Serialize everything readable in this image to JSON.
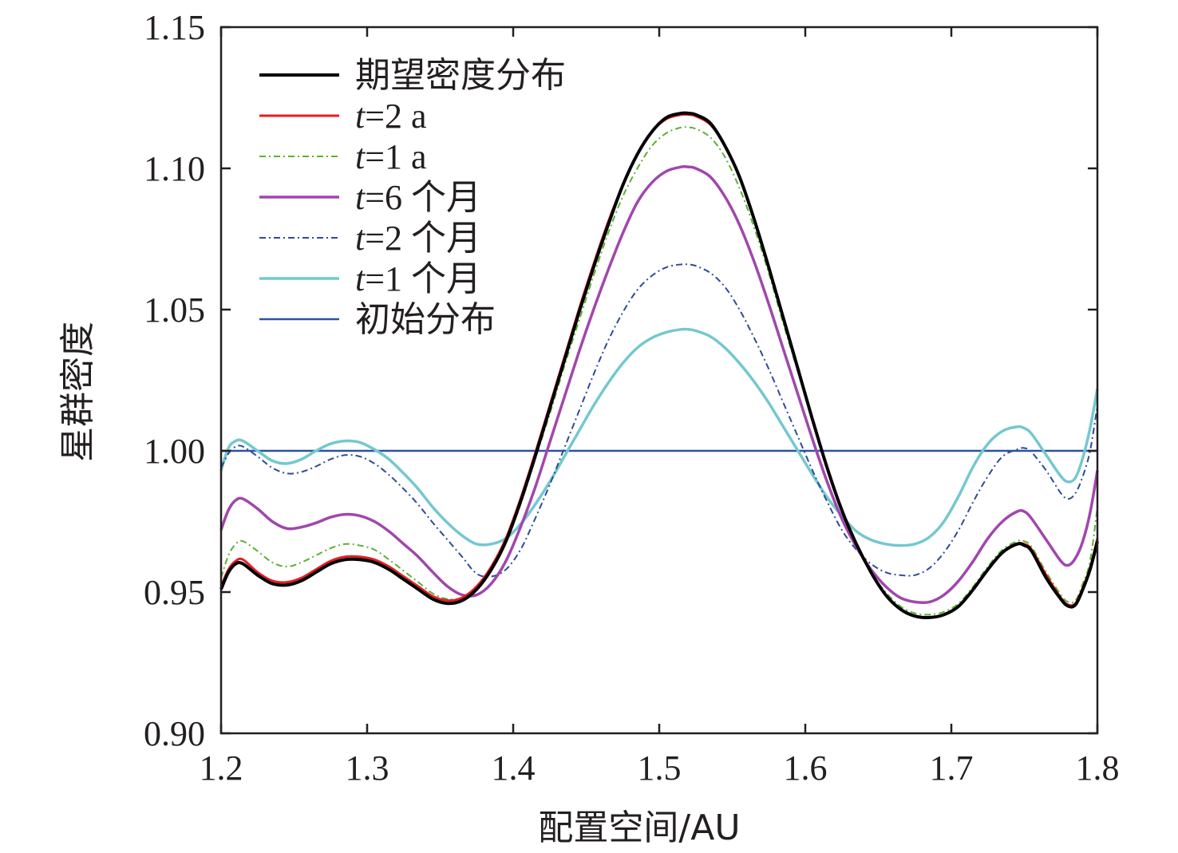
{
  "chart_data": {
    "type": "line",
    "xlabel": "配置空间/AU",
    "ylabel": "星群密度",
    "xlim": [
      1.2,
      1.8
    ],
    "ylim": [
      0.9,
      1.15
    ],
    "xticks": [
      "1.2",
      "1.3",
      "1.4",
      "1.5",
      "1.6",
      "1.7",
      "1.8"
    ],
    "yticks": [
      "0.90",
      "0.95",
      "1.00",
      "1.05",
      "1.10",
      "1.15"
    ],
    "legend_position": "top-left",
    "grid": false,
    "series": [
      {
        "name": "期望密度分布",
        "italic_prefix": "",
        "suffix": "期望密度分布",
        "color": "#000000",
        "dash": "",
        "width": 4,
        "x": [
          1.2,
          1.205,
          1.21,
          1.215,
          1.225,
          1.235,
          1.245,
          1.255,
          1.265,
          1.275,
          1.285,
          1.295,
          1.305,
          1.315,
          1.325,
          1.335,
          1.345,
          1.355,
          1.365,
          1.375,
          1.385,
          1.395,
          1.405,
          1.415,
          1.425,
          1.435,
          1.445,
          1.455,
          1.465,
          1.475,
          1.485,
          1.495,
          1.505,
          1.515,
          1.52,
          1.525,
          1.535,
          1.545,
          1.555,
          1.565,
          1.575,
          1.585,
          1.595,
          1.605,
          1.615,
          1.625,
          1.635,
          1.645,
          1.655,
          1.665,
          1.675,
          1.685,
          1.695,
          1.705,
          1.715,
          1.725,
          1.735,
          1.745,
          1.75,
          1.755,
          1.765,
          1.775,
          1.78,
          1.785,
          1.79,
          1.795,
          1.8
        ],
        "y": [
          0.951,
          0.957,
          0.96,
          0.96,
          0.956,
          0.953,
          0.9525,
          0.954,
          0.957,
          0.96,
          0.9615,
          0.9615,
          0.9605,
          0.958,
          0.9545,
          0.951,
          0.9475,
          0.946,
          0.947,
          0.951,
          0.958,
          0.968,
          0.982,
          0.998,
          1.015,
          1.032,
          1.049,
          1.065,
          1.08,
          1.094,
          1.105,
          1.113,
          1.118,
          1.1195,
          1.1195,
          1.119,
          1.116,
          1.108,
          1.097,
          1.082,
          1.065,
          1.047,
          1.029,
          1.011,
          0.994,
          0.979,
          0.967,
          0.957,
          0.949,
          0.944,
          0.9415,
          0.941,
          0.942,
          0.945,
          0.951,
          0.958,
          0.964,
          0.967,
          0.9665,
          0.9645,
          0.955,
          0.9475,
          0.945,
          0.9455,
          0.951,
          0.958,
          0.968
        ]
      },
      {
        "name": "t=2 a",
        "italic_prefix": "t",
        "suffix": "=2 a",
        "color": "#e31e24",
        "dash": "",
        "width": 3,
        "x": [
          1.2,
          1.205,
          1.21,
          1.215,
          1.225,
          1.235,
          1.245,
          1.255,
          1.265,
          1.275,
          1.285,
          1.295,
          1.305,
          1.315,
          1.325,
          1.335,
          1.345,
          1.355,
          1.365,
          1.375,
          1.385,
          1.395,
          1.405,
          1.415,
          1.425,
          1.435,
          1.445,
          1.455,
          1.465,
          1.475,
          1.485,
          1.495,
          1.505,
          1.515,
          1.52,
          1.525,
          1.535,
          1.545,
          1.555,
          1.565,
          1.575,
          1.585,
          1.595,
          1.605,
          1.615,
          1.625,
          1.635,
          1.645,
          1.655,
          1.665,
          1.675,
          1.685,
          1.695,
          1.705,
          1.715,
          1.725,
          1.735,
          1.745,
          1.75,
          1.755,
          1.765,
          1.775,
          1.78,
          1.785,
          1.79,
          1.795,
          1.8
        ],
        "y": [
          0.952,
          0.958,
          0.961,
          0.9615,
          0.957,
          0.954,
          0.9535,
          0.955,
          0.958,
          0.961,
          0.9625,
          0.9625,
          0.9615,
          0.959,
          0.9555,
          0.952,
          0.9485,
          0.947,
          0.948,
          0.952,
          0.959,
          0.969,
          0.983,
          0.999,
          1.016,
          1.033,
          1.05,
          1.066,
          1.081,
          1.094,
          1.105,
          1.113,
          1.1175,
          1.119,
          1.119,
          1.1185,
          1.1155,
          1.108,
          1.097,
          1.082,
          1.065,
          1.047,
          1.029,
          1.011,
          0.994,
          0.979,
          0.967,
          0.957,
          0.949,
          0.944,
          0.9415,
          0.941,
          0.942,
          0.945,
          0.951,
          0.958,
          0.964,
          0.967,
          0.967,
          0.965,
          0.956,
          0.948,
          0.9455,
          0.946,
          0.9515,
          0.9585,
          0.969
        ]
      },
      {
        "name": "t=1 a",
        "italic_prefix": "t",
        "suffix": "=1 a",
        "color": "#5cb031",
        "dash": "8,4,2,4",
        "width": 2,
        "x": [
          1.2,
          1.205,
          1.21,
          1.215,
          1.225,
          1.235,
          1.245,
          1.255,
          1.265,
          1.275,
          1.285,
          1.295,
          1.305,
          1.315,
          1.325,
          1.335,
          1.345,
          1.355,
          1.365,
          1.375,
          1.385,
          1.395,
          1.405,
          1.415,
          1.425,
          1.435,
          1.445,
          1.455,
          1.465,
          1.475,
          1.485,
          1.495,
          1.505,
          1.515,
          1.52,
          1.525,
          1.535,
          1.545,
          1.555,
          1.565,
          1.575,
          1.585,
          1.595,
          1.605,
          1.615,
          1.625,
          1.635,
          1.645,
          1.655,
          1.665,
          1.675,
          1.685,
          1.695,
          1.705,
          1.715,
          1.725,
          1.735,
          1.745,
          1.75,
          1.755,
          1.765,
          1.775,
          1.78,
          1.785,
          1.79,
          1.795,
          1.8
        ],
        "y": [
          0.955,
          0.963,
          0.967,
          0.968,
          0.9645,
          0.9605,
          0.959,
          0.9605,
          0.963,
          0.9655,
          0.967,
          0.9665,
          0.965,
          0.9615,
          0.9575,
          0.9535,
          0.9495,
          0.9475,
          0.948,
          0.9515,
          0.958,
          0.968,
          0.981,
          0.997,
          1.013,
          1.03,
          1.046,
          1.062,
          1.077,
          1.09,
          1.1,
          1.108,
          1.1125,
          1.1145,
          1.1145,
          1.114,
          1.111,
          1.104,
          1.093,
          1.079,
          1.063,
          1.045,
          1.028,
          1.011,
          0.994,
          0.979,
          0.967,
          0.957,
          0.95,
          0.945,
          0.9425,
          0.942,
          0.943,
          0.946,
          0.952,
          0.959,
          0.965,
          0.968,
          0.968,
          0.966,
          0.957,
          0.949,
          0.9465,
          0.947,
          0.953,
          0.961,
          0.98
        ]
      },
      {
        "name": "t=6 个月",
        "italic_prefix": "t",
        "suffix": "=6 个月",
        "color": "#a146ad",
        "dash": "",
        "width": 3.5,
        "x": [
          1.2,
          1.205,
          1.21,
          1.215,
          1.225,
          1.235,
          1.245,
          1.255,
          1.265,
          1.275,
          1.285,
          1.295,
          1.305,
          1.315,
          1.325,
          1.335,
          1.345,
          1.355,
          1.365,
          1.375,
          1.385,
          1.395,
          1.405,
          1.415,
          1.425,
          1.435,
          1.445,
          1.455,
          1.465,
          1.475,
          1.485,
          1.495,
          1.505,
          1.515,
          1.52,
          1.525,
          1.535,
          1.545,
          1.555,
          1.565,
          1.575,
          1.585,
          1.595,
          1.605,
          1.615,
          1.625,
          1.635,
          1.645,
          1.655,
          1.665,
          1.675,
          1.685,
          1.695,
          1.705,
          1.715,
          1.725,
          1.735,
          1.745,
          1.75,
          1.755,
          1.765,
          1.775,
          1.78,
          1.785,
          1.79,
          1.795,
          1.8
        ],
        "y": [
          0.972,
          0.979,
          0.9825,
          0.983,
          0.9795,
          0.975,
          0.9725,
          0.973,
          0.9745,
          0.9765,
          0.9775,
          0.977,
          0.975,
          0.9715,
          0.967,
          0.9625,
          0.957,
          0.952,
          0.949,
          0.949,
          0.953,
          0.961,
          0.973,
          0.987,
          1.003,
          1.019,
          1.035,
          1.05,
          1.064,
          1.077,
          1.088,
          1.095,
          1.099,
          1.1005,
          1.1005,
          1.1,
          1.097,
          1.09,
          1.08,
          1.067,
          1.052,
          1.036,
          1.02,
          1.004,
          0.989,
          0.976,
          0.966,
          0.958,
          0.952,
          0.948,
          0.9465,
          0.9465,
          0.949,
          0.954,
          0.961,
          0.969,
          0.975,
          0.9785,
          0.9785,
          0.976,
          0.9685,
          0.961,
          0.9595,
          0.962,
          0.968,
          0.978,
          0.993
        ]
      },
      {
        "name": "t=2 个月",
        "italic_prefix": "t",
        "suffix": "=2 个月",
        "color": "#2e4a9c",
        "dash": "8,4,2,4",
        "width": 2,
        "x": [
          1.2,
          1.205,
          1.21,
          1.215,
          1.225,
          1.235,
          1.245,
          1.255,
          1.265,
          1.275,
          1.285,
          1.295,
          1.305,
          1.315,
          1.325,
          1.335,
          1.345,
          1.355,
          1.365,
          1.375,
          1.385,
          1.395,
          1.405,
          1.415,
          1.425,
          1.435,
          1.445,
          1.455,
          1.465,
          1.475,
          1.485,
          1.495,
          1.505,
          1.515,
          1.52,
          1.525,
          1.535,
          1.545,
          1.555,
          1.565,
          1.575,
          1.585,
          1.595,
          1.605,
          1.615,
          1.625,
          1.635,
          1.645,
          1.655,
          1.665,
          1.675,
          1.685,
          1.695,
          1.705,
          1.715,
          1.725,
          1.735,
          1.745,
          1.75,
          1.755,
          1.765,
          1.775,
          1.78,
          1.785,
          1.79,
          1.795,
          1.8
        ],
        "y": [
          0.994,
          0.999,
          1.0015,
          1.0015,
          0.998,
          0.994,
          0.992,
          0.9925,
          0.9945,
          0.997,
          0.9985,
          0.998,
          0.9955,
          0.9915,
          0.9865,
          0.981,
          0.9745,
          0.9685,
          0.9625,
          0.9565,
          0.9555,
          0.958,
          0.965,
          0.976,
          0.988,
          1.001,
          1.014,
          1.027,
          1.039,
          1.049,
          1.057,
          1.062,
          1.065,
          1.066,
          1.066,
          1.0655,
          1.063,
          1.058,
          1.05,
          1.04,
          1.029,
          1.017,
          1.005,
          0.993,
          0.982,
          0.972,
          0.965,
          0.96,
          0.957,
          0.956,
          0.956,
          0.9585,
          0.964,
          0.972,
          0.982,
          0.991,
          0.998,
          1.0005,
          1.001,
          0.9995,
          0.993,
          0.985,
          0.983,
          0.985,
          0.991,
          1.0,
          1.016
        ]
      },
      {
        "name": "t=1 个月",
        "italic_prefix": "t",
        "suffix": "=1 个月",
        "color": "#74c8cf",
        "dash": "",
        "width": 3.5,
        "x": [
          1.2,
          1.205,
          1.21,
          1.215,
          1.225,
          1.235,
          1.245,
          1.255,
          1.265,
          1.275,
          1.285,
          1.295,
          1.305,
          1.315,
          1.325,
          1.335,
          1.345,
          1.355,
          1.365,
          1.375,
          1.385,
          1.395,
          1.405,
          1.415,
          1.425,
          1.435,
          1.445,
          1.455,
          1.465,
          1.475,
          1.485,
          1.495,
          1.505,
          1.515,
          1.52,
          1.525,
          1.535,
          1.545,
          1.555,
          1.565,
          1.575,
          1.585,
          1.595,
          1.605,
          1.615,
          1.625,
          1.635,
          1.645,
          1.655,
          1.665,
          1.675,
          1.685,
          1.695,
          1.705,
          1.715,
          1.725,
          1.735,
          1.745,
          1.75,
          1.755,
          1.765,
          1.775,
          1.78,
          1.785,
          1.79,
          1.795,
          1.8
        ],
        "y": [
          0.993,
          1.001,
          1.0035,
          1.0035,
          1.0,
          0.9965,
          0.9955,
          0.997,
          1.0,
          1.0025,
          1.0035,
          1.003,
          1.0005,
          0.997,
          0.992,
          0.9865,
          0.98,
          0.9745,
          0.97,
          0.967,
          0.967,
          0.969,
          0.974,
          0.981,
          0.989,
          0.998,
          1.007,
          1.016,
          1.024,
          1.031,
          1.0365,
          1.04,
          1.042,
          1.043,
          1.043,
          1.0425,
          1.0405,
          1.0365,
          1.031,
          1.0245,
          1.017,
          1.0085,
          1.0,
          0.9915,
          0.9835,
          0.977,
          0.9715,
          0.9685,
          0.967,
          0.9665,
          0.967,
          0.9695,
          0.975,
          0.984,
          0.9945,
          1.0025,
          1.007,
          1.0085,
          1.008,
          1.006,
          0.9985,
          0.991,
          0.989,
          0.9905,
          0.9975,
          1.008,
          1.022
        ]
      },
      {
        "name": "初始分布",
        "italic_prefix": "",
        "suffix": "初始分布",
        "color": "#2a53a0",
        "dash": "",
        "width": 2.5,
        "x": [
          1.2,
          1.8
        ],
        "y": [
          1.0,
          1.0
        ]
      }
    ]
  }
}
